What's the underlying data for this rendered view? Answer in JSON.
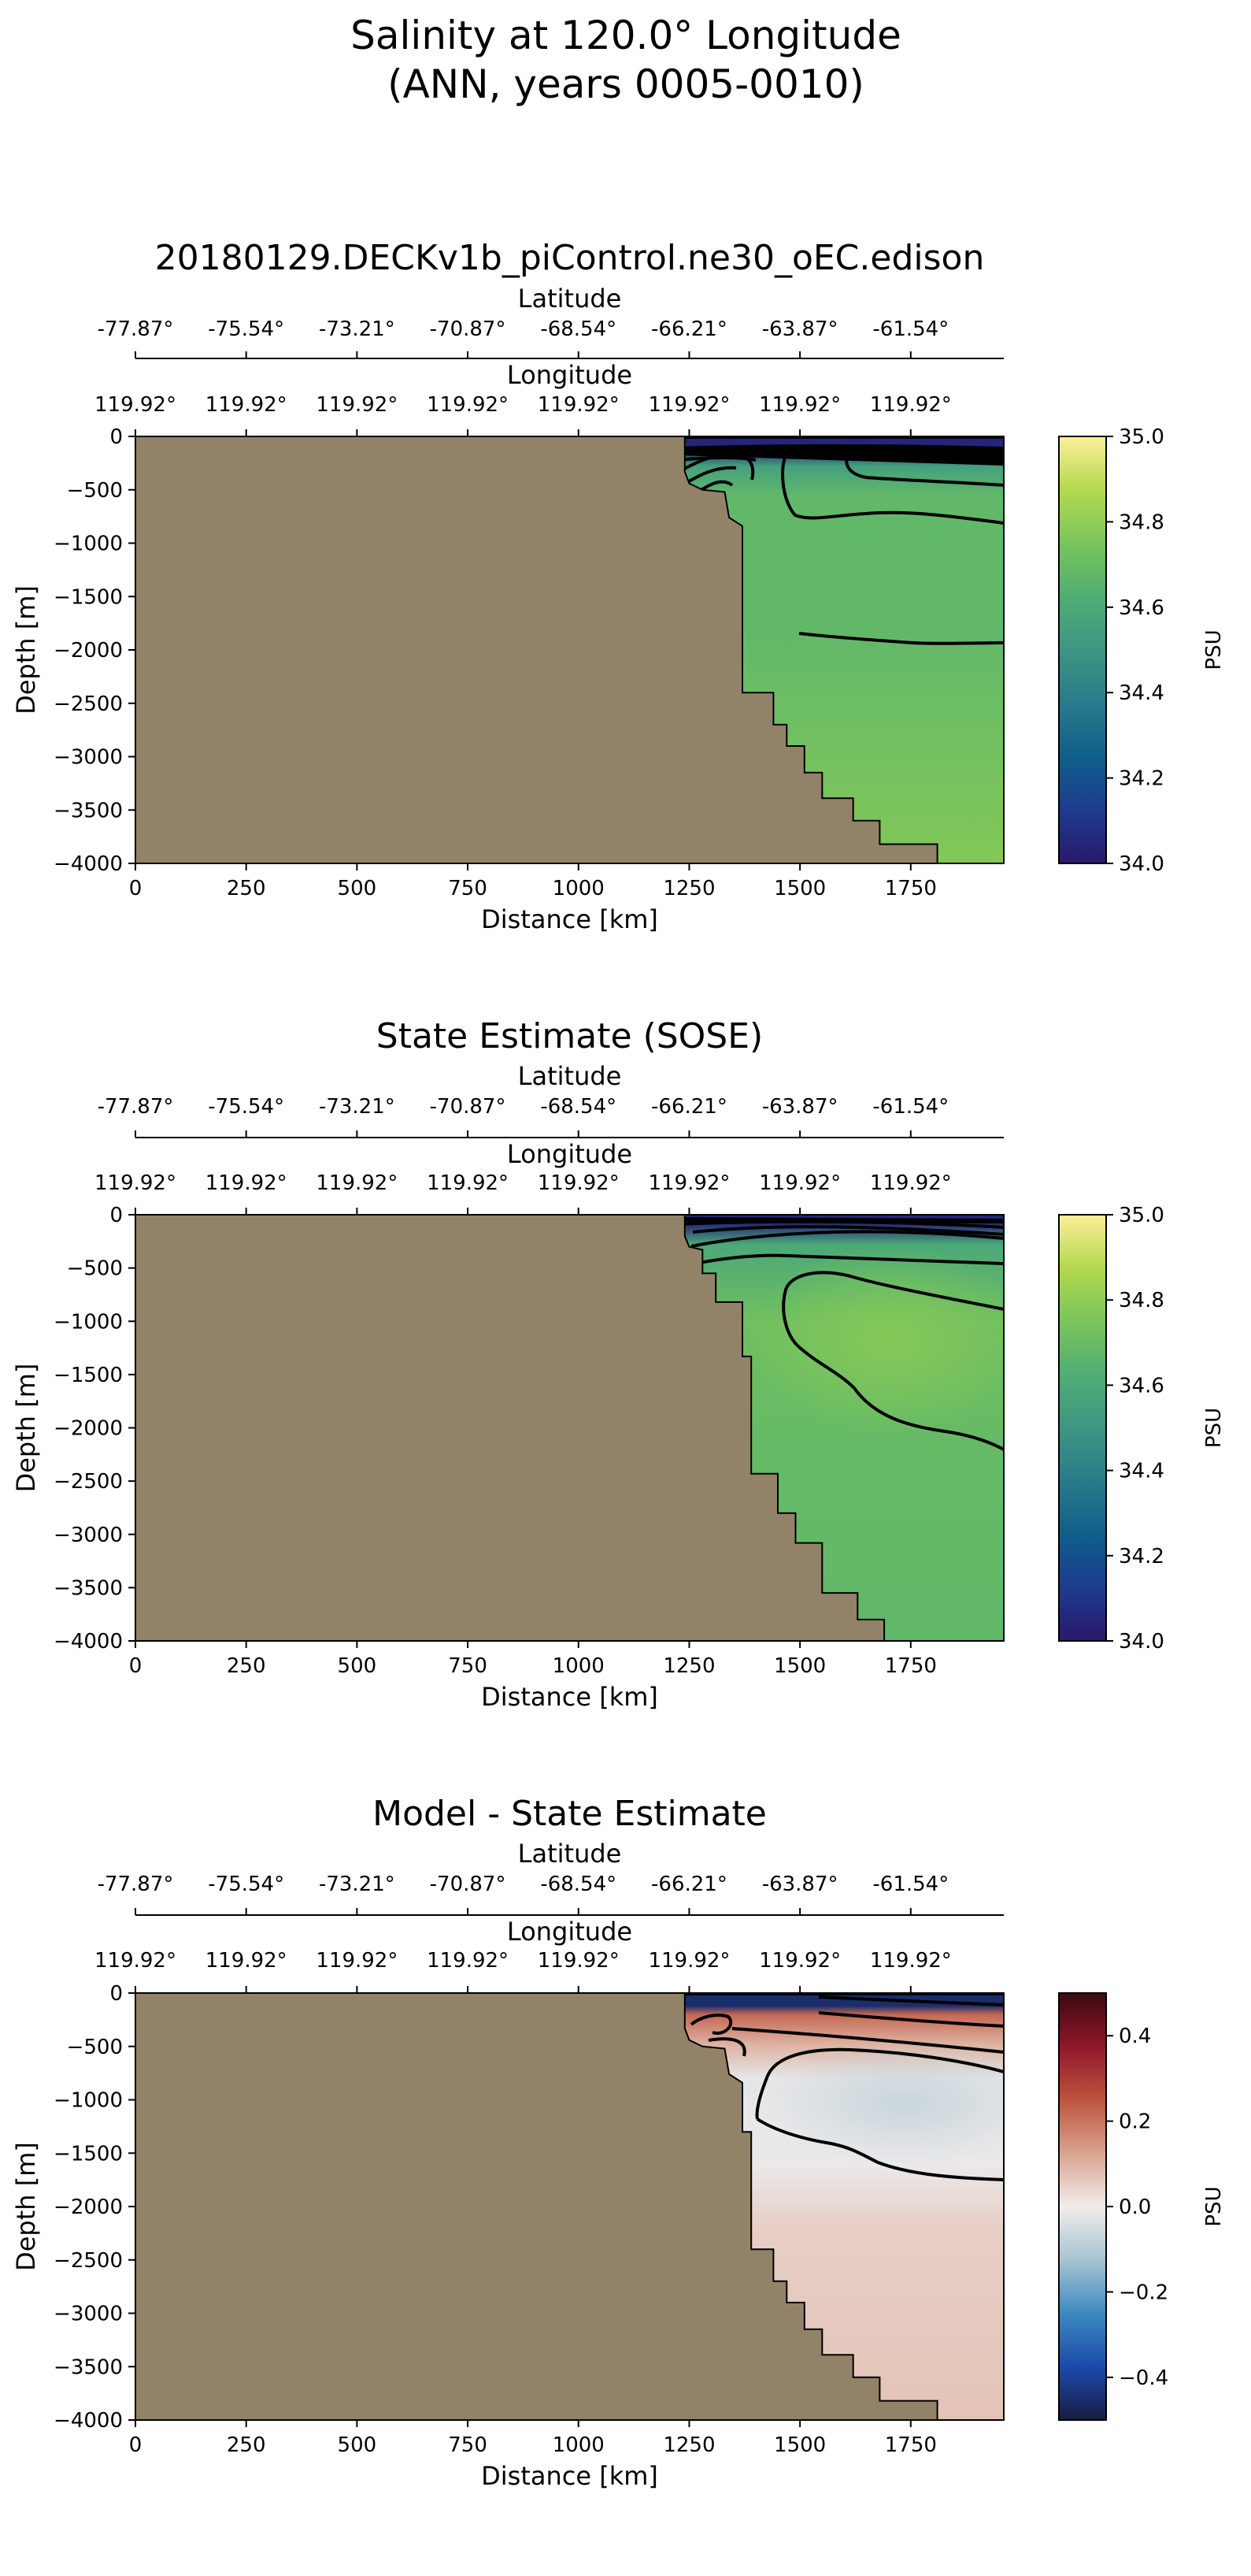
{
  "figure": {
    "title_line1": "Salinity at 120.0° Longitude",
    "title_line2": "(ANN, years 0005-0010)"
  },
  "colors": {
    "land": "#928267",
    "haline": [
      "#2a186c",
      "#1e3b8e",
      "#0f5f8b",
      "#297b8b",
      "#3d9683",
      "#4fae74",
      "#7ac55a",
      "#b4d84f",
      "#fdef9a"
    ],
    "balance": [
      "#181c43",
      "#1c4aab",
      "#3c8ac1",
      "#a7c4d1",
      "#f1eceb",
      "#d9a38f",
      "#bd5440",
      "#8f1728",
      "#3c0912"
    ]
  },
  "chart_data": [
    {
      "type": "heatmap",
      "panel": "model",
      "title": "20180129.DECKv1b_piControl.ne30_oEC.edison",
      "xlabel": "Distance [km]",
      "ylabel": "Depth [m]",
      "xlim": [
        0,
        1960
      ],
      "ylim": [
        -4000,
        0
      ],
      "xticks": [
        "0",
        "250",
        "500",
        "750",
        "1000",
        "1250",
        "1500",
        "1750"
      ],
      "yticks": [
        "0",
        "−500",
        "−1000",
        "−1500",
        "−2000",
        "−2500",
        "−3000",
        "−3500",
        "−4000"
      ],
      "top_axis1_label": "Latitude",
      "lat_ticks": [
        "-77.87°",
        "-75.54°",
        "-73.21°",
        "-70.87°",
        "-68.54°",
        "-66.21°",
        "-63.87°",
        "-61.54°"
      ],
      "top_axis2_label": "Longitude",
      "lon_ticks": [
        "119.92°",
        "119.92°",
        "119.92°",
        "119.92°",
        "119.92°",
        "119.92°",
        "119.92°",
        "119.92°"
      ],
      "colorbar": {
        "label": "PSU",
        "range": [
          34.0,
          35.0
        ],
        "ticks": [
          "35.0",
          "34.8",
          "34.6",
          "34.4",
          "34.2",
          "34.0"
        ],
        "colormap": "haline"
      },
      "bathymetry_km_m": [
        [
          1240,
          -330
        ],
        [
          1250,
          -440
        ],
        [
          1280,
          -500
        ],
        [
          1330,
          -520
        ],
        [
          1340,
          -760
        ],
        [
          1370,
          -840
        ],
        [
          1370,
          -2400
        ],
        [
          1440,
          -2400
        ],
        [
          1440,
          -2700
        ],
        [
          1470,
          -2700
        ],
        [
          1470,
          -2900
        ],
        [
          1510,
          -2900
        ],
        [
          1510,
          -3150
        ],
        [
          1550,
          -3150
        ],
        [
          1550,
          -3390
        ],
        [
          1620,
          -3390
        ],
        [
          1620,
          -3600
        ],
        [
          1680,
          -3600
        ],
        [
          1680,
          -3820
        ],
        [
          1810,
          -3820
        ],
        [
          1810,
          -4000
        ]
      ],
      "salinity_field_psu": {
        "surface": 34.05,
        "z_150m": 34.55,
        "z_300m": 34.68,
        "z_1500m": 34.68,
        "z_3500m": 34.77
      },
      "contour_levels_psu": [
        34.6,
        34.7
      ]
    },
    {
      "type": "heatmap",
      "panel": "obs",
      "title": "State Estimate (SOSE)",
      "xlabel": "Distance [km]",
      "ylabel": "Depth [m]",
      "xlim": [
        0,
        1960
      ],
      "ylim": [
        -4000,
        0
      ],
      "xticks": [
        "0",
        "250",
        "500",
        "750",
        "1000",
        "1250",
        "1500",
        "1750"
      ],
      "yticks": [
        "0",
        "−500",
        "−1000",
        "−1500",
        "−2000",
        "−2500",
        "−3000",
        "−3500",
        "−4000"
      ],
      "top_axis1_label": "Latitude",
      "lat_ticks": [
        "-77.87°",
        "-75.54°",
        "-73.21°",
        "-70.87°",
        "-68.54°",
        "-66.21°",
        "-63.87°",
        "-61.54°"
      ],
      "top_axis2_label": "Longitude",
      "lon_ticks": [
        "119.92°",
        "119.92°",
        "119.92°",
        "119.92°",
        "119.92°",
        "119.92°",
        "119.92°",
        "119.92°"
      ],
      "colorbar": {
        "label": "PSU",
        "range": [
          34.0,
          35.0
        ],
        "ticks": [
          "35.0",
          "34.8",
          "34.6",
          "34.4",
          "34.2",
          "34.0"
        ],
        "colormap": "haline"
      },
      "bathymetry_km_m": [
        [
          1240,
          -200
        ],
        [
          1250,
          -300
        ],
        [
          1280,
          -330
        ],
        [
          1280,
          -550
        ],
        [
          1310,
          -550
        ],
        [
          1310,
          -820
        ],
        [
          1370,
          -820
        ],
        [
          1370,
          -1330
        ],
        [
          1390,
          -1330
        ],
        [
          1390,
          -2430
        ],
        [
          1450,
          -2430
        ],
        [
          1450,
          -2800
        ],
        [
          1490,
          -2800
        ],
        [
          1490,
          -3080
        ],
        [
          1550,
          -3080
        ],
        [
          1550,
          -3550
        ],
        [
          1630,
          -3550
        ],
        [
          1630,
          -3800
        ],
        [
          1690,
          -3800
        ],
        [
          1690,
          -4000
        ]
      ],
      "salinity_field_psu": {
        "surface": 34.05,
        "z_200m": 34.6,
        "z_1000m": 34.72,
        "z_3500m": 34.68
      },
      "contour_levels_psu": [
        34.6,
        34.7
      ]
    },
    {
      "type": "heatmap",
      "panel": "bias",
      "title": "Model - State Estimate",
      "xlabel": "Distance [km]",
      "ylabel": "Depth [m]",
      "xlim": [
        0,
        1960
      ],
      "ylim": [
        -4000,
        0
      ],
      "xticks": [
        "0",
        "250",
        "500",
        "750",
        "1000",
        "1250",
        "1500",
        "1750"
      ],
      "yticks": [
        "0",
        "−500",
        "−1000",
        "−1500",
        "−2000",
        "−2500",
        "−3000",
        "−3500",
        "−4000"
      ],
      "top_axis1_label": "Latitude",
      "lat_ticks": [
        "-77.87°",
        "-75.54°",
        "-73.21°",
        "-70.87°",
        "-68.54°",
        "-66.21°",
        "-63.87°",
        "-61.54°"
      ],
      "top_axis2_label": "Longitude",
      "lon_ticks": [
        "119.92°",
        "119.92°",
        "119.92°",
        "119.92°",
        "119.92°",
        "119.92°",
        "119.92°",
        "119.92°"
      ],
      "colorbar": {
        "label": "PSU",
        "range": [
          -0.5,
          0.5
        ],
        "ticks": [
          "0.4",
          "0.2",
          "0.0",
          "−0.2",
          "−0.4"
        ],
        "colormap": "balance"
      },
      "bathymetry_km_m": [
        [
          1240,
          -330
        ],
        [
          1250,
          -440
        ],
        [
          1280,
          -500
        ],
        [
          1330,
          -520
        ],
        [
          1340,
          -760
        ],
        [
          1370,
          -840
        ],
        [
          1370,
          -1300
        ],
        [
          1390,
          -1300
        ],
        [
          1390,
          -2400
        ],
        [
          1440,
          -2400
        ],
        [
          1440,
          -2700
        ],
        [
          1470,
          -2700
        ],
        [
          1470,
          -2900
        ],
        [
          1510,
          -2900
        ],
        [
          1510,
          -3150
        ],
        [
          1550,
          -3150
        ],
        [
          1550,
          -3390
        ],
        [
          1620,
          -3390
        ],
        [
          1620,
          -3600
        ],
        [
          1680,
          -3600
        ],
        [
          1680,
          -3820
        ],
        [
          1810,
          -3820
        ],
        [
          1810,
          -4000
        ]
      ],
      "bias_field_psu": {
        "surface": -0.45,
        "z_300m": 0.22,
        "z_1000m": -0.02,
        "z_3000m": 0.07
      },
      "contour_levels_psu": [
        -0.1,
        0.0,
        0.1,
        0.2
      ]
    }
  ]
}
